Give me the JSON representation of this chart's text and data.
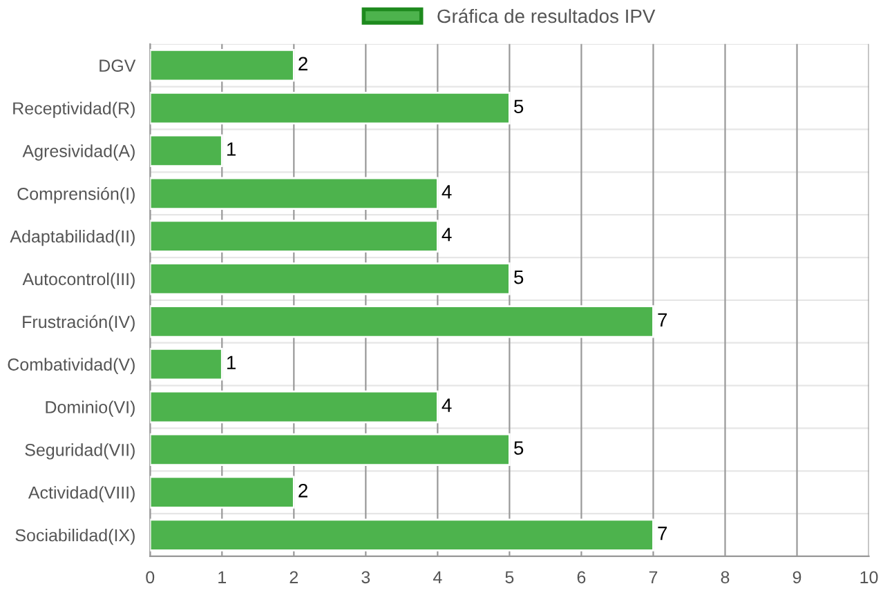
{
  "chart_data": {
    "type": "bar",
    "orientation": "horizontal",
    "categories": [
      "DGV",
      "Receptividad(R)",
      "Agresividad(A)",
      "Comprensión(I)",
      "Adaptabilidad(II)",
      "Autocontrol(III)",
      "Frustración(IV)",
      "Combatividad(V)",
      "Dominio(VI)",
      "Seguridad(VII)",
      "Actividad(VIII)",
      "Sociabilidad(IX)"
    ],
    "series": [
      {
        "name": "Gráfica de resultados IPV",
        "color": "#4db34d",
        "values": [
          2,
          5,
          1,
          4,
          4,
          5,
          7,
          1,
          4,
          5,
          2,
          7
        ]
      }
    ],
    "xlim": [
      0,
      10
    ],
    "xticks": [
      0,
      1,
      2,
      3,
      4,
      5,
      6,
      7,
      8,
      9,
      10
    ],
    "grid": true,
    "legend": "top",
    "data_labels": true
  }
}
